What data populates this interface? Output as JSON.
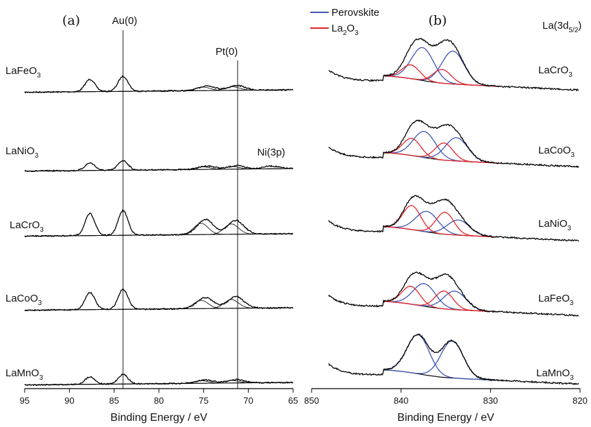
{
  "colors": {
    "perovskite": "#3d55b5",
    "la2o3": "#e0232a",
    "envelope": "#000000",
    "axis": "#000000"
  },
  "chart_data": [
    {
      "type": "line",
      "panel_label": "(a)",
      "xlabel": "Binding Energy / eV",
      "xlim": [
        95,
        65
      ],
      "x_reversed": true,
      "x_ticks": [
        "95",
        "90",
        "85",
        "80",
        "75",
        "70",
        "65"
      ],
      "y_ticks": "none",
      "reference_lines": [
        {
          "label": "Au(0)",
          "x": 84.0
        },
        {
          "label": "Pt(0)",
          "x": 71.2
        }
      ],
      "annotations": [
        "Ni(3p)"
      ],
      "series": [
        {
          "name": "LaFeO3",
          "name_main": "LaFeO",
          "name_sub": "3",
          "peaks": [
            {
              "x": 87.7,
              "height": 18
            },
            {
              "x": 84.0,
              "height": 22
            },
            {
              "x": 74.6,
              "height": 7
            },
            {
              "x": 71.3,
              "height": 7
            }
          ]
        },
        {
          "name": "LaNiO3",
          "name_main": "LaNiO",
          "name_sub": "3",
          "peaks": [
            {
              "x": 87.7,
              "height": 11
            },
            {
              "x": 84.0,
              "height": 14
            },
            {
              "x": 74.6,
              "height": 5
            },
            {
              "x": 71.3,
              "height": 5
            },
            {
              "x": 67.5,
              "height": 4
            }
          ]
        },
        {
          "name": "LaCrO3",
          "name_main": "LaCrO",
          "name_sub": "3",
          "peaks": [
            {
              "x": 87.7,
              "height": 32
            },
            {
              "x": 84.0,
              "height": 36
            },
            {
              "x": 74.8,
              "height": 22
            },
            {
              "x": 71.4,
              "height": 20
            }
          ]
        },
        {
          "name": "LaCoO3",
          "name_main": "LaCoO",
          "name_sub": "3",
          "peaks": [
            {
              "x": 87.7,
              "height": 25
            },
            {
              "x": 84.0,
              "height": 29
            },
            {
              "x": 74.8,
              "height": 16
            },
            {
              "x": 71.4,
              "height": 17
            }
          ]
        },
        {
          "name": "LaMnO3",
          "name_main": "LaMnO",
          "name_sub": "3",
          "peaks": [
            {
              "x": 87.7,
              "height": 11
            },
            {
              "x": 84.0,
              "height": 14
            },
            {
              "x": 74.8,
              "height": 5
            },
            {
              "x": 71.4,
              "height": 5
            }
          ]
        }
      ]
    },
    {
      "type": "line",
      "panel_label": "(b)",
      "xlabel": "Binding Energy / eV",
      "xlim": [
        850,
        820
      ],
      "x_reversed": true,
      "x_ticks": [
        "850",
        "840",
        "830",
        "820"
      ],
      "y_ticks": "none",
      "title": "La(3d5/2)",
      "title_main": "La(3d",
      "title_sub": "5/2",
      "title_end": ")",
      "legend": [
        {
          "label": "Perovskite",
          "color_key": "perovskite"
        },
        {
          "label_main": "La",
          "label_sub": "2",
          "label_mid": "O",
          "label_sub2": "3",
          "color_key": "la2o3"
        }
      ],
      "series": [
        {
          "name": "LaCrO3",
          "name_main": "LaCrO",
          "name_sub": "3",
          "perovskite_peaks": [
            {
              "x": 837.6,
              "height": 48
            },
            {
              "x": 834.2,
              "height": 48
            }
          ],
          "la2o3_peaks": [
            {
              "x": 838.9,
              "height": 20
            },
            {
              "x": 835.4,
              "height": 20
            }
          ]
        },
        {
          "name": "LaCoO3",
          "name_main": "LaCoO",
          "name_sub": "3",
          "perovskite_peaks": [
            {
              "x": 837.4,
              "height": 38
            },
            {
              "x": 833.8,
              "height": 34
            }
          ],
          "la2o3_peaks": [
            {
              "x": 838.8,
              "height": 25
            },
            {
              "x": 835.2,
              "height": 25
            }
          ]
        },
        {
          "name": "LaNiO3",
          "name_main": "LaNiO",
          "name_sub": "3",
          "perovskite_peaks": [
            {
              "x": 837.1,
              "height": 30
            },
            {
              "x": 833.6,
              "height": 22
            }
          ],
          "la2o3_peaks": [
            {
              "x": 838.8,
              "height": 35
            },
            {
              "x": 835.1,
              "height": 32
            }
          ]
        },
        {
          "name": "LaFeO3",
          "name_main": "LaFeO",
          "name_sub": "3",
          "perovskite_peaks": [
            {
              "x": 837.4,
              "height": 33
            },
            {
              "x": 834.0,
              "height": 27
            }
          ],
          "la2o3_peaks": [
            {
              "x": 838.9,
              "height": 26
            },
            {
              "x": 835.2,
              "height": 26
            }
          ]
        },
        {
          "name": "LaMnO3",
          "name_main": "LaMnO",
          "name_sub": "3",
          "perovskite_peaks": [
            {
              "x": 838.1,
              "height": 57
            },
            {
              "x": 834.3,
              "height": 54
            }
          ],
          "la2o3_peaks": []
        }
      ]
    }
  ]
}
